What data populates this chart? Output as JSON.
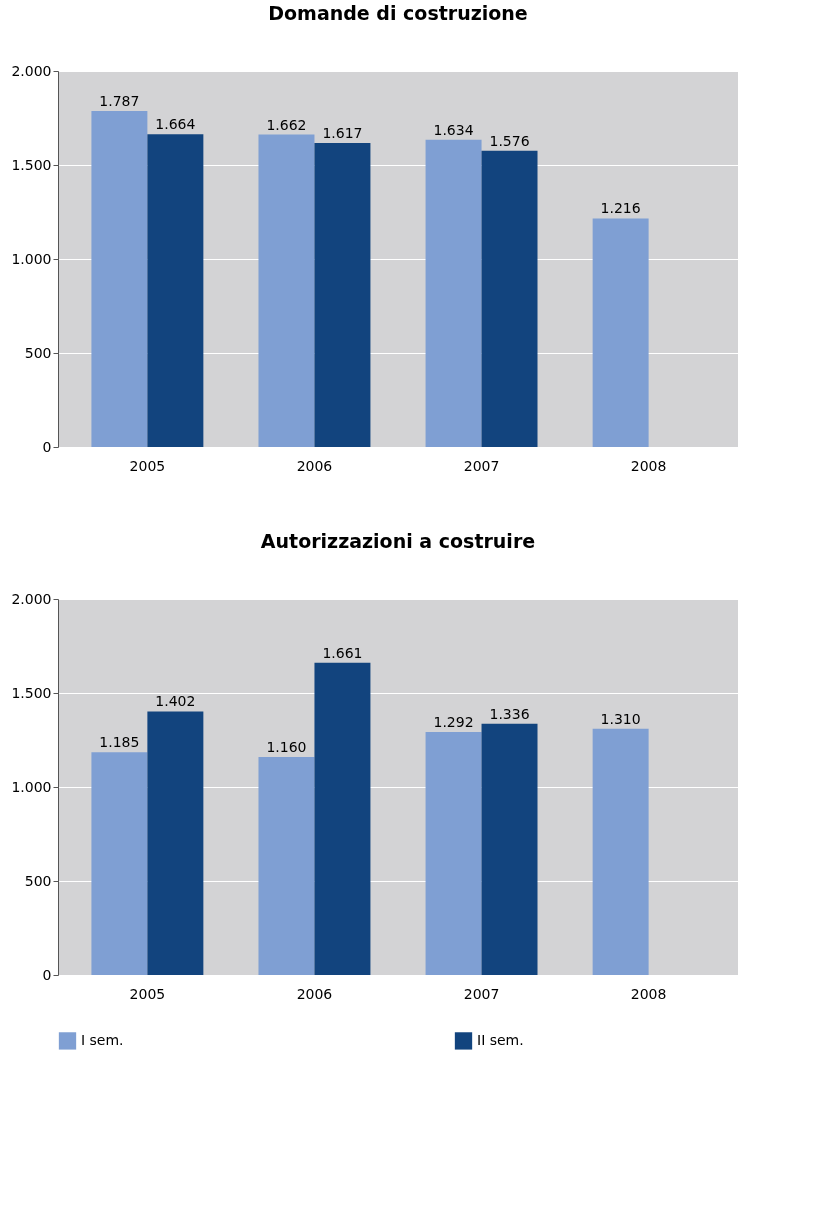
{
  "chart_data": [
    {
      "type": "bar",
      "title": "Domande di costruzione",
      "categories": [
        "2005",
        "2006",
        "2007",
        "2008"
      ],
      "series": [
        {
          "color": "#7f9fd3",
          "values": [
            1787,
            1662,
            1634,
            1216
          ],
          "value_labels": [
            "1.787",
            "1.662",
            "1.634",
            "1.216"
          ]
        },
        {
          "color": "#12447e",
          "values": [
            1664,
            1617,
            1576,
            null
          ],
          "value_labels": [
            "1.664",
            "1.617",
            "1.576",
            null
          ]
        }
      ],
      "ylim": [
        0,
        2000
      ],
      "yticks": [
        0,
        500,
        {
          "value": 1000,
          "label": "1.000"
        },
        {
          "value": 1500,
          "label": "1.500"
        },
        {
          "value": 2000,
          "label": "2.000"
        }
      ],
      "grid": "y",
      "legend": false
    },
    {
      "type": "bar",
      "title": "Autorizzazioni a costruire",
      "categories": [
        "2005",
        "2006",
        "2007",
        "2008"
      ],
      "series": [
        {
          "name": "I sem.",
          "color": "#7f9fd3",
          "values": [
            1185,
            1160,
            1292,
            1310
          ],
          "value_labels": [
            "1.185",
            "1.160",
            "1.292",
            "1.310"
          ]
        },
        {
          "name": "II sem.",
          "color": "#12447e",
          "values": [
            1402,
            1661,
            1336,
            null
          ],
          "value_labels": [
            "1.402",
            "1.661",
            "1.336",
            null
          ]
        }
      ],
      "ylim": [
        0,
        2000
      ],
      "yticks": [
        0,
        500,
        {
          "value": 1000,
          "label": "1.000"
        },
        {
          "value": 1500,
          "label": "1.500"
        },
        {
          "value": 2000,
          "label": "2.000"
        }
      ],
      "grid": "y",
      "legend": "bottom"
    }
  ]
}
